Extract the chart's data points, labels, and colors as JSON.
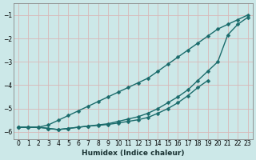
{
  "xlabel": "Humidex (Indice chaleur)",
  "ylabel": "",
  "xlim": [
    -0.5,
    23.5
  ],
  "ylim": [
    -6.3,
    -0.5
  ],
  "yticks": [
    -6,
    -5,
    -4,
    -3,
    -2,
    -1
  ],
  "xticks": [
    0,
    1,
    2,
    3,
    4,
    5,
    6,
    7,
    8,
    9,
    10,
    11,
    12,
    13,
    14,
    15,
    16,
    17,
    18,
    19,
    20,
    21,
    22,
    23
  ],
  "bg_color": "#cce8e8",
  "grid_color": "#b8d8d8",
  "line_color": "#1a6b6b",
  "marker": "D",
  "markersize": 2.5,
  "linewidth": 1.0,
  "curve1_x": [
    0,
    1,
    2,
    3,
    4,
    5,
    6,
    7,
    8,
    9,
    10,
    11,
    12,
    13,
    14,
    15,
    16,
    17,
    18,
    19,
    20,
    21,
    22,
    23
  ],
  "curve1_y": [
    -5.8,
    -5.8,
    -5.8,
    -5.7,
    -5.5,
    -5.3,
    -5.1,
    -4.9,
    -4.7,
    -4.5,
    -4.3,
    -4.1,
    -3.9,
    -3.7,
    -3.4,
    -3.1,
    -2.8,
    -2.5,
    -2.2,
    -1.9,
    -1.6,
    -1.4,
    -1.2,
    -1.0
  ],
  "curve2_x": [
    0,
    1,
    2,
    3,
    4,
    5,
    6,
    7,
    8,
    9,
    10,
    11,
    12,
    13,
    14,
    15,
    16,
    17,
    18,
    19,
    20,
    21,
    22,
    23
  ],
  "curve2_y": [
    -5.8,
    -5.8,
    -5.8,
    -5.85,
    -5.9,
    -5.85,
    -5.8,
    -5.75,
    -5.7,
    -5.65,
    -5.55,
    -5.45,
    -5.35,
    -5.2,
    -5.0,
    -4.75,
    -4.5,
    -4.2,
    -3.8,
    -3.4,
    -3.0,
    -1.85,
    -1.4,
    -1.1
  ],
  "curve3_x": [
    0,
    1,
    2,
    3,
    4,
    5,
    6,
    7,
    8,
    9,
    10,
    11,
    12,
    13,
    14,
    15,
    16,
    17,
    18,
    19
  ],
  "curve3_y": [
    -5.8,
    -5.8,
    -5.8,
    -5.85,
    -5.9,
    -5.85,
    -5.8,
    -5.75,
    -5.72,
    -5.68,
    -5.62,
    -5.55,
    -5.48,
    -5.38,
    -5.2,
    -5.0,
    -4.75,
    -4.45,
    -4.1,
    -3.8
  ]
}
